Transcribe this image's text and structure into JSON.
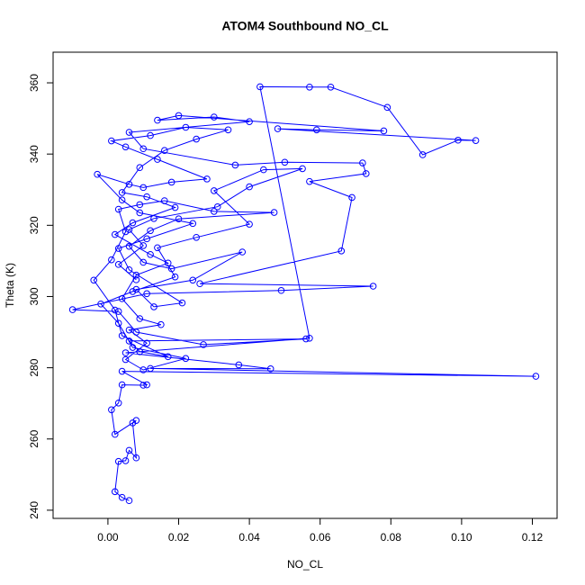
{
  "chart_data": {
    "type": "line",
    "markers": "open-circle",
    "color": "#0000ff",
    "title": "ATOM4 Southbound NO_CL",
    "x_label": "NO_CL",
    "y_label": "Theta (K)",
    "xlim": [
      -0.0155,
      0.127
    ],
    "ylim": [
      237.7,
      368.6
    ],
    "xticks": [
      {
        "value": 0,
        "label": "0.00"
      },
      {
        "value": 0.02,
        "label": "0.02"
      },
      {
        "value": 0.04,
        "label": "0.04"
      },
      {
        "value": 0.06,
        "label": "0.06"
      },
      {
        "value": 0.08,
        "label": "0.08"
      },
      {
        "value": 0.1,
        "label": "0.10"
      },
      {
        "value": 0.12,
        "label": "0.12"
      }
    ],
    "yticks": [
      240,
      260,
      280,
      300,
      320,
      340,
      360
    ],
    "x": [
      0.006,
      0.004,
      0.002,
      0.003,
      0.005,
      0.006,
      0.008,
      0.007,
      0.008,
      0.002,
      0.001,
      0.003,
      0.004,
      0.01,
      0.011,
      0.004,
      0.121,
      0.012,
      0.046,
      0.037,
      0.005,
      0.057,
      0.043,
      0.057,
      0.063,
      0.079,
      0.089,
      0.099,
      0.104,
      0.048,
      0.059,
      0.078,
      0.02,
      0.014,
      0.03,
      0.04,
      0.006,
      0.01,
      0.036,
      0.05,
      0.072,
      0.073,
      0.057,
      0.069,
      0.066,
      0.026,
      0.075,
      0.049,
      0.011,
      -0.01,
      0.003,
      0.008,
      0.027,
      0.056,
      0.006,
      0.009,
      0.017,
      0.004,
      0.002,
      -0.004,
      0.001,
      0.005,
      0.003,
      0.009,
      0.016,
      0.03,
      0.047,
      0.02,
      0.012,
      0.006,
      0.01,
      0.018,
      0.038,
      0.024,
      0.008,
      0.013,
      0.021,
      0.006,
      0.003,
      0.011,
      0.024,
      0.009,
      0.004,
      -0.003,
      0.006,
      0.01,
      0.018,
      0.028,
      0.014,
      0.005,
      0.001,
      0.012,
      0.022,
      0.034,
      0.025,
      0.016,
      0.009,
      0.004,
      0.011,
      0.019,
      0.007,
      0.002,
      0.012,
      0.017,
      0.008,
      0.004,
      0.009,
      0.015,
      0.006,
      0.011,
      0.005,
      0.01,
      0.022,
      0.007,
      0.003,
      -0.002,
      0.007,
      0.019,
      0.014,
      0.025,
      0.04,
      0.03,
      0.044,
      0.055,
      0.04,
      0.031,
      0.013,
      0.006,
      0.01,
      0.003,
      0.008
    ],
    "values": [
      242.7,
      243.6,
      245.2,
      253.7,
      253.9,
      256.8,
      254.7,
      264.5,
      265.2,
      261.3,
      268.2,
      270.1,
      275.2,
      275.1,
      275.2,
      279.0,
      277.6,
      279.8,
      279.7,
      280.8,
      284.2,
      288.3,
      358.9,
      358.8,
      358.8,
      353.1,
      339.8,
      343.9,
      343.8,
      347.1,
      346.8,
      346.5,
      350.8,
      349.5,
      350.4,
      349.1,
      346.1,
      341.5,
      336.9,
      337.7,
      337.5,
      334.5,
      332.3,
      327.8,
      312.8,
      303.6,
      302.9,
      301.7,
      300.8,
      296.3,
      295.8,
      290.0,
      286.5,
      288.1,
      287.5,
      284.5,
      283.1,
      289.0,
      296.2,
      304.6,
      310.3,
      318.2,
      324.5,
      325.8,
      326.9,
      323.9,
      323.6,
      321.8,
      318.5,
      314.1,
      309.6,
      307.8,
      312.5,
      304.6,
      302.0,
      297.1,
      298.2,
      307.5,
      313.5,
      316.2,
      320.5,
      323.5,
      327.1,
      334.3,
      331.5,
      330.6,
      332.1,
      333.0,
      338.5,
      342.0,
      343.7,
      345.2,
      347.5,
      346.8,
      344.2,
      341.0,
      336.2,
      329.2,
      328.0,
      325.0,
      320.7,
      317.4,
      311.8,
      309.4,
      306.0,
      299.4,
      293.8,
      292.1,
      290.6,
      286.9,
      282.3,
      279.4,
      282.6,
      285.7,
      292.5,
      297.9,
      301.4,
      305.5,
      313.7,
      316.6,
      320.3,
      329.7,
      335.6,
      335.9,
      330.8,
      325.2,
      321.9,
      318.8,
      314.3,
      309.0,
      304.7
    ]
  }
}
